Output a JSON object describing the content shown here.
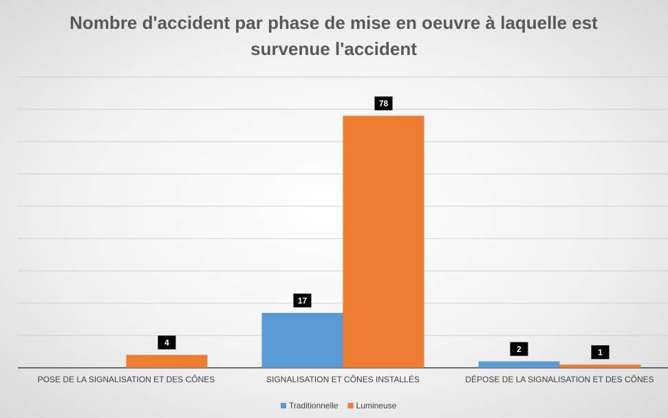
{
  "chart_data": {
    "type": "bar",
    "title": "Nombre d'accident par phase de mise en oeuvre à laquelle est survenue l'accident",
    "categories": [
      "POSE DE LA SIGNALISATION ET DES CÔNES",
      "SIGNALISATION ET CÔNES INSTALLÉS",
      "DÉPOSE DE LA SIGNALISATION ET DES CÔNES"
    ],
    "series": [
      {
        "name": "Traditionnelle",
        "color": "#5b9bd5",
        "values": [
          null,
          17,
          2
        ]
      },
      {
        "name": "Lumineuse",
        "color": "#ed7d31",
        "values": [
          4,
          78,
          1
        ]
      }
    ],
    "ylim": [
      0,
      90
    ],
    "yticks": [
      0,
      10,
      20,
      30,
      40,
      50,
      60,
      70,
      80,
      90
    ],
    "grid": true,
    "legend": "bottom"
  }
}
